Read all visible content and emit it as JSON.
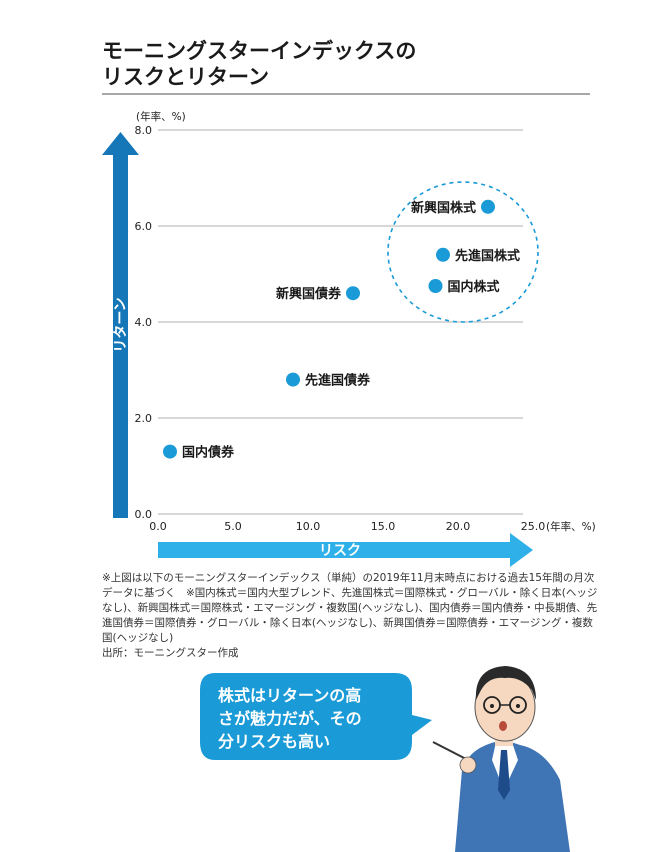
{
  "title": {
    "line1": "モーニングスターインデックスの",
    "line2": "リスクとリターン"
  },
  "chart_data": {
    "type": "scatter",
    "ylabel": "リターン",
    "xlabel": "リスク",
    "y_unit": "(年率、%)",
    "x_unit": "(年率、%)",
    "xlim": [
      0,
      25
    ],
    "ylim": [
      0,
      8
    ],
    "x_ticks": [
      "0.0",
      "5.0",
      "10.0",
      "15.0",
      "20.0",
      "25.0"
    ],
    "y_ticks": [
      "0.0",
      "2.0",
      "4.0",
      "6.0",
      "8.0"
    ],
    "grid": "horizontal",
    "point_color": "#1a9ad6",
    "points": [
      {
        "label": "国内債券",
        "x": 0.8,
        "y": 1.3
      },
      {
        "label": "先進国債券",
        "x": 9.0,
        "y": 2.8
      },
      {
        "label": "新興国債券",
        "x": 13.0,
        "y": 4.6
      },
      {
        "label": "国内株式",
        "x": 18.5,
        "y": 4.75
      },
      {
        "label": "先進国株式",
        "x": 19.0,
        "y": 5.4
      },
      {
        "label": "新興国株式",
        "x": 22.0,
        "y": 6.4
      }
    ],
    "highlight_group": [
      "新興国株式",
      "先進国株式",
      "国内株式"
    ]
  },
  "notes": [
    "※上図は以下のモーニングスターインデックス（単純）の2019年11月末時点における過去15年間の月次データに基づく　※国内株式＝国内大型ブレンド、先進国株式＝国際株式・グローバル・除く日本(ヘッジなし)、新興国株式＝国際株式・エマージング・複数国(ヘッジなし)、国内債券＝国内債券・中長期債、先進国債券＝国際債券・グローバル・除く日本(ヘッジなし)、新興国債券＝国際債券・エマージング・複数国(ヘッジなし)",
    "出所：モーニングスター作成"
  ],
  "bubble": {
    "line1": "株式はリターンの高",
    "line2": "さが魅力だが、その",
    "line3": "分リスクも高い"
  },
  "colors": {
    "accent": "#1a9ad6",
    "axis_arrow_dark": "#1677b8",
    "axis_arrow_light": "#2fb0e8"
  }
}
